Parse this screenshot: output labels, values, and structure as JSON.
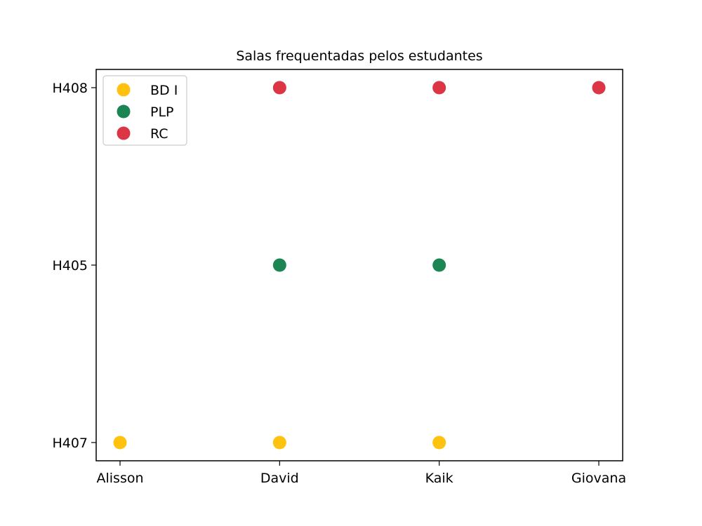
{
  "chart_data": {
    "type": "scatter",
    "title": "Salas frequentadas pelos estudantes",
    "xlabel": "",
    "ylabel": "",
    "x_categories": [
      "Alisson",
      "David",
      "Kaik",
      "Giovana"
    ],
    "y_categories": [
      "H407",
      "H405",
      "H408"
    ],
    "grid": false,
    "legend_position": "top-left",
    "series": [
      {
        "name": "BD I",
        "color": "#FFC20E",
        "points": [
          {
            "x": "Alisson",
            "y": "H407"
          },
          {
            "x": "David",
            "y": "H407"
          },
          {
            "x": "Kaik",
            "y": "H407"
          }
        ]
      },
      {
        "name": "PLP",
        "color": "#1B8554",
        "points": [
          {
            "x": "David",
            "y": "H405"
          },
          {
            "x": "Kaik",
            "y": "H405"
          }
        ]
      },
      {
        "name": "RC",
        "color": "#DC3545",
        "points": [
          {
            "x": "David",
            "y": "H408"
          },
          {
            "x": "Kaik",
            "y": "H408"
          },
          {
            "x": "Giovana",
            "y": "H408"
          }
        ]
      }
    ]
  }
}
